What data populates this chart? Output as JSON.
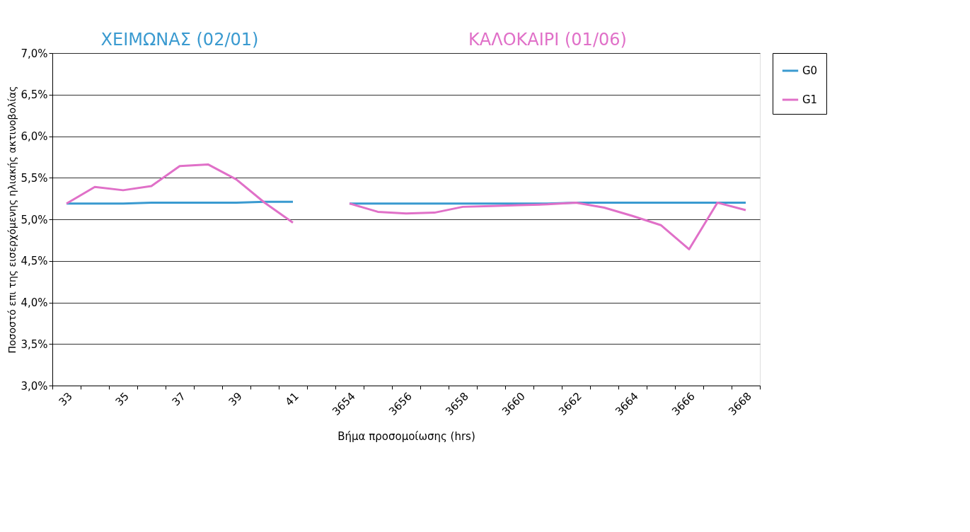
{
  "chart_data": {
    "type": "line",
    "xlabel": "Βήμα προσομοίωσης (hrs)",
    "ylabel": "Ποσοστό επι της εισερχόμενης ηλιακής ακτινοβολίας",
    "annotations": [
      "ΧΕΙΜΩΝΑΣ (02/01)",
      "ΚΑΛΟΚΑΙΡΙ (01/06)"
    ],
    "categories": [
      "33",
      null,
      "35",
      null,
      "37",
      null,
      "39",
      null,
      "41",
      null,
      "3654",
      null,
      "3656",
      null,
      "3658",
      null,
      "3660",
      null,
      "3662",
      null,
      "3664",
      null,
      "3666",
      null,
      "3668"
    ],
    "series": [
      {
        "name": "G0",
        "color": "#3a9ad0",
        "values": [
          5.19,
          5.19,
          5.19,
          5.2,
          5.2,
          5.2,
          5.2,
          5.21,
          5.21,
          null,
          5.19,
          5.19,
          5.19,
          5.19,
          5.19,
          5.19,
          5.19,
          5.19,
          5.2,
          5.2,
          5.2,
          5.2,
          5.2,
          5.2,
          5.2
        ]
      },
      {
        "name": "G1",
        "color": "#e070c8",
        "values": [
          5.19,
          5.39,
          5.35,
          5.4,
          5.64,
          5.66,
          5.48,
          5.2,
          4.96,
          null,
          5.19,
          5.09,
          5.07,
          5.08,
          5.15,
          5.16,
          5.17,
          5.18,
          5.2,
          5.14,
          5.04,
          4.93,
          4.64,
          5.2,
          5.11
        ]
      }
    ],
    "ylim": [
      3.0,
      7.0
    ],
    "yticks": [
      {
        "value": 3.0,
        "label": "3,0%"
      },
      {
        "value": 3.5,
        "label": "3,5%"
      },
      {
        "value": 4.0,
        "label": "4,0%"
      },
      {
        "value": 4.5,
        "label": "4,5%"
      },
      {
        "value": 5.0,
        "label": "5,0%"
      },
      {
        "value": 5.5,
        "label": "5,5%"
      },
      {
        "value": 6.0,
        "label": "6,0%"
      },
      {
        "value": 6.5,
        "label": "6,5%"
      },
      {
        "value": 7.0,
        "label": "7,0%"
      }
    ],
    "grid": "y",
    "legend": "right",
    "marker": "none",
    "line_style": "solid"
  }
}
